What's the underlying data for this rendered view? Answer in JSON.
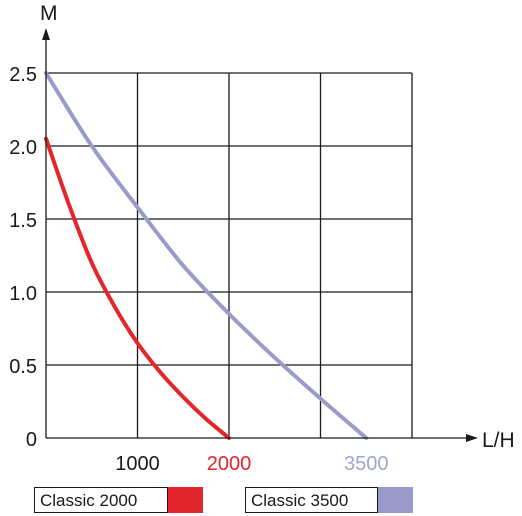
{
  "chart_data": {
    "type": "line",
    "title": "",
    "xlabel": "L/H",
    "ylabel": "M",
    "xlim": [
      0,
      4000
    ],
    "ylim": [
      0,
      2.5
    ],
    "x_ticks": [
      {
        "value": 1000,
        "label": "1000",
        "color": "#1a1a1a"
      },
      {
        "value": 2000,
        "label": "2000",
        "color": "#e3262c"
      },
      {
        "value": 3500,
        "label": "3500",
        "color": "#a3a3cf"
      }
    ],
    "y_ticks": [
      {
        "value": 0,
        "label": "0"
      },
      {
        "value": 0.5,
        "label": "0.5"
      },
      {
        "value": 1.0,
        "label": "1.0"
      },
      {
        "value": 1.5,
        "label": "1.5"
      },
      {
        "value": 2.0,
        "label": "2.0"
      },
      {
        "value": 2.5,
        "label": "2.5"
      }
    ],
    "grid": true,
    "legend_position": "bottom",
    "series": [
      {
        "name": "Classic 2000",
        "color": "#e3262c",
        "points": [
          [
            0,
            2.05
          ],
          [
            250,
            1.6
          ],
          [
            500,
            1.2
          ],
          [
            750,
            0.9
          ],
          [
            1000,
            0.65
          ],
          [
            1250,
            0.45
          ],
          [
            1500,
            0.28
          ],
          [
            1750,
            0.13
          ],
          [
            2000,
            0
          ]
        ]
      },
      {
        "name": "Classic 3500",
        "color": "#9b9bcb",
        "points": [
          [
            0,
            2.5
          ],
          [
            500,
            2.0
          ],
          [
            1000,
            1.58
          ],
          [
            1500,
            1.18
          ],
          [
            2000,
            0.85
          ],
          [
            2500,
            0.55
          ],
          [
            3000,
            0.27
          ],
          [
            3500,
            0
          ]
        ]
      }
    ]
  }
}
